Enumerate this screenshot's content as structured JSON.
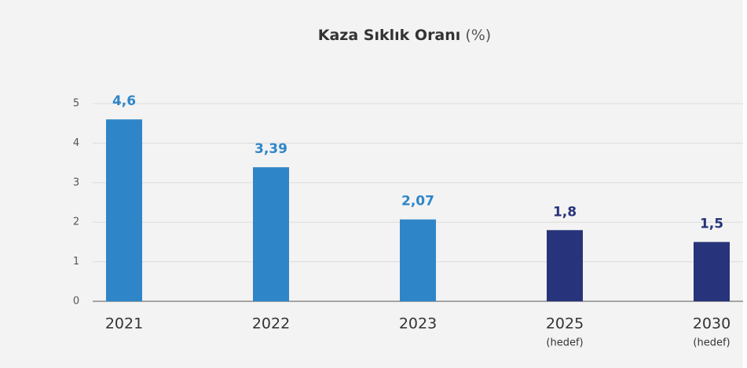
{
  "chart_data": {
    "type": "bar",
    "title": "Kaza Sıklık Oranı",
    "unit": "(%)",
    "categories": [
      "2021",
      "2022",
      "2023",
      "2025",
      "2030"
    ],
    "category_notes": [
      null,
      null,
      null,
      "(hedef)",
      "(hedef)"
    ],
    "values": [
      4.6,
      3.39,
      2.07,
      1.8,
      1.5
    ],
    "value_labels": [
      "4,6",
      "3,39",
      "2,07",
      "1,8",
      "1,5"
    ],
    "colors": [
      "#2e86c8",
      "#2e86c8",
      "#2e86c8",
      "#27337a",
      "#27337a"
    ],
    "ylim": [
      0,
      5
    ],
    "yticks": [
      0,
      1,
      2,
      3,
      4,
      5
    ],
    "grid": true
  }
}
